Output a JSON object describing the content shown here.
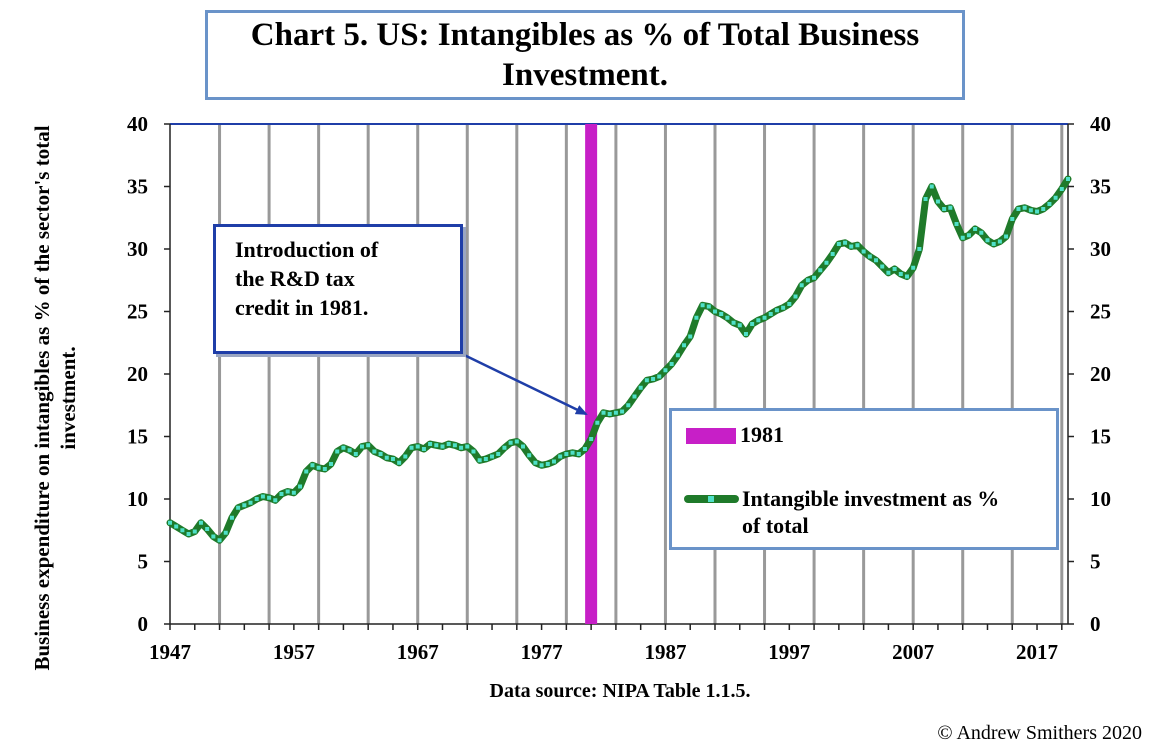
{
  "title": "Chart 5. US: Intangibles as % of Total Business Investment.",
  "annotation": "Introduction of\nthe R&D tax\ncredit in 1981.",
  "legend": {
    "bar_label": "1981",
    "line_label": "Intangible investment as %\nof total"
  },
  "ylabel": "Business expenditure on intangibles as % of the sector's total investment.",
  "xlabel": "Data source: NIPA Table 1.1.5.",
  "copyright": "© Andrew Smithers 2020",
  "colors": {
    "line": "#1f7a2a",
    "markers": "#4fe0c8",
    "bar": "#c71fc7",
    "grid": "#999999",
    "axis": "#222222",
    "top_line": "#1f3ea8"
  },
  "chart_data": {
    "type": "line",
    "title": "Chart 5. US: Intangibles as % of Total Business Investment.",
    "xlabel": "Data source: NIPA Table 1.1.5.",
    "ylabel": "Business expenditure on intangibles as % of the sector's total investment.",
    "xlim": [
      1947,
      2019.5
    ],
    "ylim": [
      0,
      40
    ],
    "yticks": [
      0,
      5,
      10,
      15,
      20,
      25,
      30,
      35,
      40
    ],
    "xticks": [
      1947,
      1957,
      1967,
      1977,
      1987,
      1997,
      2007,
      2017
    ],
    "right_axis": true,
    "grid": "vertical",
    "bar": {
      "name": "1981",
      "x": 1981,
      "value": 40
    },
    "series": [
      {
        "name": "Intangible investment as % of total",
        "x": [
          1947,
          1947.5,
          1948,
          1948.5,
          1949,
          1949.5,
          1950,
          1950.5,
          1951,
          1951.5,
          1952,
          1952.5,
          1953,
          1953.5,
          1954,
          1954.5,
          1955,
          1955.5,
          1956,
          1956.5,
          1957,
          1957.5,
          1958,
          1958.5,
          1959,
          1959.5,
          1960,
          1960.5,
          1961,
          1961.5,
          1962,
          1962.5,
          1963,
          1963.5,
          1964,
          1964.5,
          1965,
          1965.5,
          1966,
          1966.5,
          1967,
          1967.5,
          1968,
          1968.5,
          1969,
          1969.5,
          1970,
          1970.5,
          1971,
          1971.5,
          1972,
          1972.5,
          1973,
          1973.5,
          1974,
          1974.5,
          1975,
          1975.5,
          1976,
          1976.5,
          1977,
          1977.5,
          1978,
          1978.5,
          1979,
          1979.5,
          1980,
          1980.5,
          1981,
          1981.5,
          1982,
          1982.5,
          1983,
          1983.5,
          1984,
          1984.5,
          1985,
          1985.5,
          1986,
          1986.5,
          1987,
          1987.5,
          1988,
          1988.5,
          1989,
          1989.5,
          1990,
          1990.5,
          1991,
          1991.5,
          1992,
          1992.5,
          1993,
          1993.5,
          1994,
          1994.5,
          1995,
          1995.5,
          1996,
          1996.5,
          1997,
          1997.5,
          1998,
          1998.5,
          1999,
          1999.5,
          2000,
          2000.5,
          2001,
          2001.5,
          2002,
          2002.5,
          2003,
          2003.5,
          2004,
          2004.5,
          2005,
          2005.5,
          2006,
          2006.5,
          2007,
          2007.5,
          2008,
          2008.5,
          2009,
          2009.5,
          2010,
          2010.5,
          2011,
          2011.5,
          2012,
          2012.5,
          2013,
          2013.5,
          2014,
          2014.5,
          2015,
          2015.5,
          2016,
          2016.5,
          2017,
          2017.5,
          2018,
          2018.5,
          2019,
          2019.5
        ],
        "values": [
          8.1,
          7.8,
          7.5,
          7.2,
          7.4,
          8.1,
          7.6,
          7.0,
          6.7,
          7.3,
          8.5,
          9.3,
          9.5,
          9.7,
          10.0,
          10.2,
          10.1,
          9.9,
          10.4,
          10.6,
          10.5,
          11.0,
          12.2,
          12.7,
          12.5,
          12.4,
          12.8,
          13.8,
          14.1,
          13.9,
          13.6,
          14.2,
          14.3,
          13.8,
          13.6,
          13.3,
          13.2,
          12.9,
          13.4,
          14.1,
          14.2,
          14.0,
          14.4,
          14.3,
          14.2,
          14.4,
          14.3,
          14.1,
          14.2,
          13.8,
          13.1,
          13.2,
          13.4,
          13.6,
          14.1,
          14.5,
          14.6,
          14.2,
          13.5,
          12.9,
          12.7,
          12.8,
          13.0,
          13.4,
          13.6,
          13.7,
          13.6,
          14.0,
          14.8,
          16.1,
          16.9,
          16.8,
          16.9,
          17.0,
          17.5,
          18.2,
          18.9,
          19.5,
          19.6,
          19.8,
          20.3,
          20.8,
          21.5,
          22.3,
          23.0,
          24.5,
          25.5,
          25.4,
          25.0,
          24.8,
          24.5,
          24.1,
          23.9,
          23.2,
          24.0,
          24.3,
          24.5,
          24.8,
          25.1,
          25.3,
          25.6,
          26.2,
          27.1,
          27.5,
          27.7,
          28.3,
          28.9,
          29.6,
          30.4,
          30.5,
          30.2,
          30.3,
          29.8,
          29.4,
          29.1,
          28.6,
          28.1,
          28.4,
          28.0,
          27.8,
          28.5,
          30.0,
          34.0,
          35.0,
          33.8,
          33.2,
          33.3,
          32.0,
          30.9,
          31.1,
          31.6,
          31.3,
          30.7,
          30.4,
          30.6,
          31.0,
          32.4,
          33.2,
          33.3,
          33.1,
          33.0,
          33.2,
          33.6,
          34.1,
          34.8,
          35.6
        ]
      }
    ]
  }
}
